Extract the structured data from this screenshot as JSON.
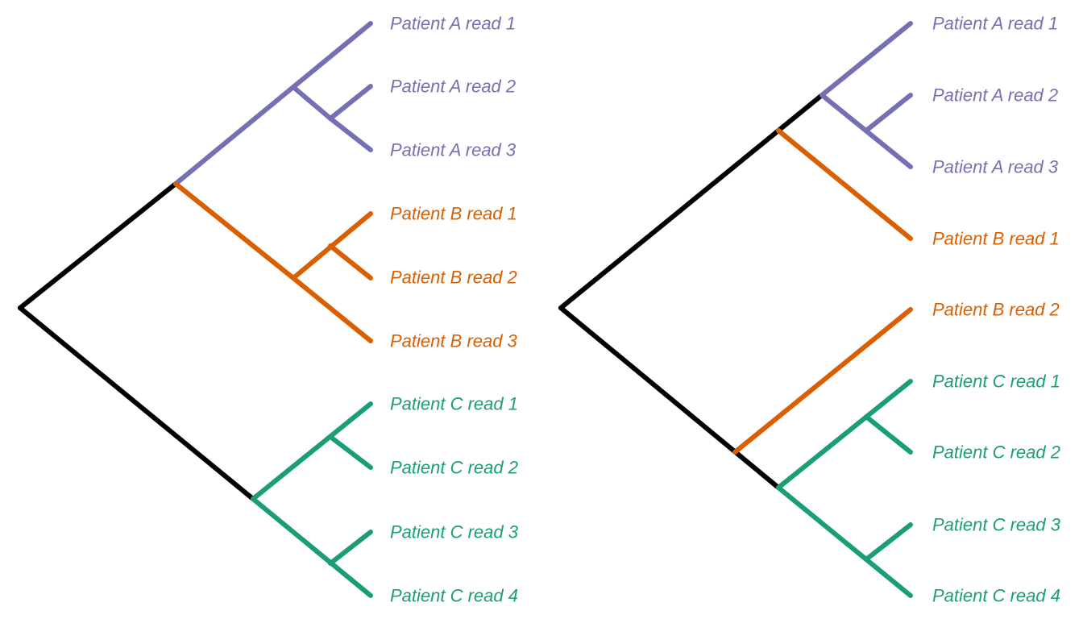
{
  "colors": {
    "stem": "#000000",
    "patient_a": "#7570b3",
    "patient_b": "#d95f02",
    "patient_c": "#1b9e77"
  },
  "trees": [
    {
      "id": "left-tree",
      "leaves": [
        {
          "label": "Patient A read 1",
          "group": "patient_a"
        },
        {
          "label": "Patient A read 2",
          "group": "patient_a"
        },
        {
          "label": "Patient A read 3",
          "group": "patient_a"
        },
        {
          "label": "Patient B read 1",
          "group": "patient_b"
        },
        {
          "label": "Patient B read 2",
          "group": "patient_b"
        },
        {
          "label": "Patient B read 3",
          "group": "patient_b"
        },
        {
          "label": "Patient C read 1",
          "group": "patient_c"
        },
        {
          "label": "Patient C read 2",
          "group": "patient_c"
        },
        {
          "label": "Patient C read 3",
          "group": "patient_c"
        },
        {
          "label": "Patient C read 4",
          "group": "patient_c"
        }
      ]
    },
    {
      "id": "right-tree",
      "leaves": [
        {
          "label": "Patient A read 1",
          "group": "patient_a"
        },
        {
          "label": "Patient A read 2",
          "group": "patient_a"
        },
        {
          "label": "Patient A read 3",
          "group": "patient_a"
        },
        {
          "label": "Patient B read 1",
          "group": "patient_b"
        },
        {
          "label": "Patient B read 2",
          "group": "patient_b"
        },
        {
          "label": "Patient C read 1",
          "group": "patient_c"
        },
        {
          "label": "Patient C read 2",
          "group": "patient_c"
        },
        {
          "label": "Patient C read 3",
          "group": "patient_c"
        },
        {
          "label": "Patient C read 4",
          "group": "patient_c"
        }
      ]
    }
  ]
}
